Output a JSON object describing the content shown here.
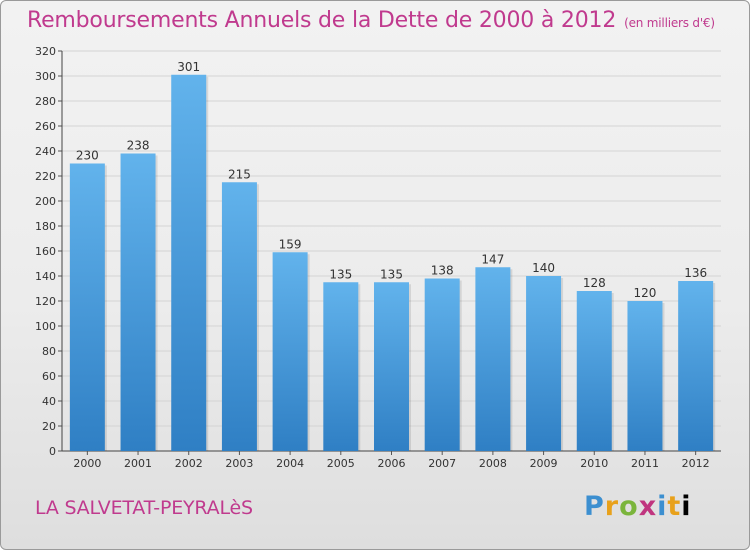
{
  "header": {
    "title": "Remboursements Annuels de la Dette de 2000 à 2012",
    "subtitle": "(en milliers d'€)"
  },
  "footer": {
    "commune": "LA SALVETAT-PEYRALèS",
    "logo": "Proxiti"
  },
  "colors": {
    "title": "#c03a8e",
    "bar_top": "#62b3ec",
    "bar_bottom": "#2f7fc4",
    "axis": "#444444"
  },
  "chart_data": {
    "type": "bar",
    "title": "Remboursements Annuels de la Dette de 2000 à 2012",
    "subtitle": "(en milliers d'€)",
    "categories": [
      "2000",
      "2001",
      "2002",
      "2003",
      "2004",
      "2005",
      "2006",
      "2007",
      "2008",
      "2009",
      "2010",
      "2011",
      "2012"
    ],
    "values": [
      230,
      238,
      301,
      215,
      159,
      135,
      135,
      138,
      147,
      140,
      128,
      120,
      136
    ],
    "ylim": [
      0,
      320
    ],
    "yticks": [
      0,
      20,
      40,
      60,
      80,
      100,
      120,
      140,
      160,
      180,
      200,
      220,
      240,
      260,
      280,
      300,
      320
    ],
    "grid": true,
    "data_labels": true
  }
}
